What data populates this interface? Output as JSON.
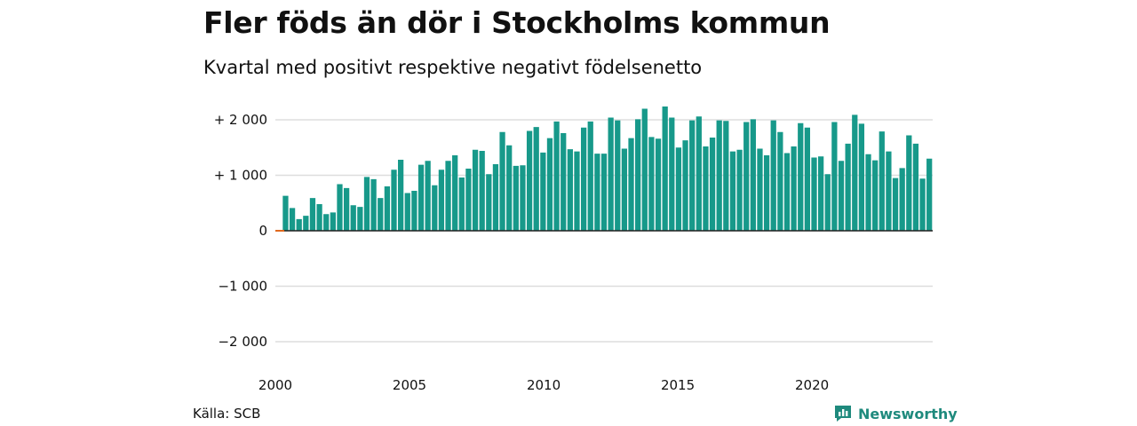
{
  "header": {
    "title": "Fler föds än dör i Stockholms kommun",
    "subtitle": "Kvartal med positivt respektive negativt födelsenetto"
  },
  "footer": {
    "source": "Källa: SCB",
    "brand": "Newsworthy",
    "brand_icon": "newsworthy-logo-icon"
  },
  "colors": {
    "positive": "#17998a",
    "negative": "#e0691f",
    "grid": "#dddddd",
    "brand": "#1f8a7d"
  },
  "chart_data": {
    "type": "bar",
    "title": "Fler föds än dör i Stockholms kommun",
    "subtitle": "Kvartal med positivt respektive negativt födelsenetto",
    "x_start": 2000,
    "x_end": 2024.5,
    "period": "quarter",
    "ylim": [
      -2200,
      2300
    ],
    "yticks": [
      {
        "value": 2000,
        "label": "+ 2 000"
      },
      {
        "value": 1000,
        "label": "+ 1 000"
      },
      {
        "value": 0,
        "label": "0"
      },
      {
        "value": -1000,
        "label": "−1 000"
      },
      {
        "value": -2000,
        "label": "−2 000"
      }
    ],
    "xticks": [
      {
        "value": 2000,
        "label": "2000"
      },
      {
        "value": 2005,
        "label": "2005"
      },
      {
        "value": 2010,
        "label": "2010"
      },
      {
        "value": 2015,
        "label": "2015"
      },
      {
        "value": 2020,
        "label": "2020"
      }
    ],
    "grid": true,
    "series": [
      {
        "start_quarter": "2000-Q1",
        "values": [
          0,
          630,
          410,
          210,
          270,
          590,
          480,
          300,
          330,
          840,
          770,
          460,
          430,
          970,
          930,
          590,
          800,
          1100,
          1280,
          680,
          720,
          1190,
          1260,
          820,
          1100,
          1260,
          1360,
          960,
          1120,
          1460,
          1440,
          1020,
          1200,
          1780,
          1540,
          1170,
          1180,
          1800,
          1870,
          1410,
          1670,
          1970,
          1760,
          1470,
          1430,
          1860,
          1970,
          1390,
          1390,
          2040,
          1990,
          1480,
          1670,
          2010,
          2200,
          1690,
          1660,
          2240,
          2040,
          1500,
          1630,
          1990,
          2060,
          1520,
          1680,
          1990,
          1980,
          1430,
          1460,
          1960,
          2010,
          1480,
          1360,
          1990,
          1780,
          1400,
          1520,
          1940,
          1860,
          1320,
          1340,
          1020,
          1960,
          1260,
          1570,
          2090,
          1930,
          1380,
          1270,
          1790,
          1430,
          950,
          1130,
          1720,
          1570,
          940,
          1300
        ]
      }
    ]
  }
}
